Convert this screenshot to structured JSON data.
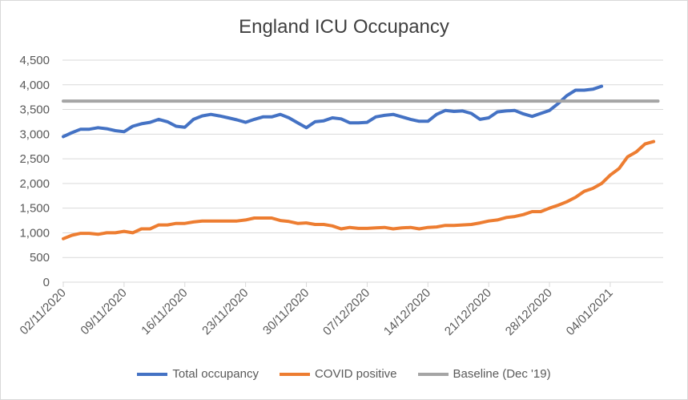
{
  "chart_data": {
    "type": "line",
    "title": "England ICU Occupancy",
    "xlabel": "",
    "ylabel": "",
    "ylim": [
      0,
      4500
    ],
    "y_ticks": [
      "0",
      "500",
      "1,000",
      "1,500",
      "2,000",
      "2,500",
      "3,000",
      "3,500",
      "4,000",
      "4,500"
    ],
    "y_tick_values": [
      0,
      500,
      1000,
      1500,
      2000,
      2500,
      3000,
      3500,
      4000,
      4500
    ],
    "x_unit": "days since 02/11/2020",
    "x_ticks": [
      "02/11/2020",
      "09/11/2020",
      "16/11/2020",
      "23/11/2020",
      "30/11/2020",
      "07/12/2020",
      "14/12/2020",
      "21/12/2020",
      "28/12/2020",
      "04/01/2021"
    ],
    "x_tick_days": [
      0,
      7,
      14,
      21,
      28,
      35,
      42,
      49,
      56,
      63
    ],
    "grid": true,
    "legend_position": "bottom",
    "series": [
      {
        "name": "Total occupancy",
        "color": "#4472C4",
        "values": [
          2950,
          3030,
          3100,
          3100,
          3130,
          3110,
          3070,
          3050,
          3160,
          3210,
          3240,
          3300,
          3250,
          3160,
          3140,
          3300,
          3370,
          3400,
          3370,
          3330,
          3290,
          3240,
          3300,
          3350,
          3350,
          3400,
          3330,
          3230,
          3130,
          3250,
          3270,
          3330,
          3310,
          3230,
          3230,
          3240,
          3350,
          3380,
          3400,
          3350,
          3300,
          3260,
          3260,
          3400,
          3480,
          3460,
          3470,
          3420,
          3300,
          3330,
          3450,
          3470,
          3480,
          3410,
          3360,
          3420,
          3480,
          3620,
          3780,
          3890,
          3890,
          3910,
          3970
        ]
      },
      {
        "name": "COVID positive",
        "color": "#ED7D31",
        "values": [
          880,
          950,
          990,
          990,
          970,
          1000,
          1000,
          1030,
          1000,
          1080,
          1080,
          1160,
          1160,
          1190,
          1190,
          1220,
          1240,
          1240,
          1240,
          1240,
          1240,
          1260,
          1300,
          1300,
          1300,
          1250,
          1230,
          1190,
          1200,
          1170,
          1170,
          1140,
          1080,
          1110,
          1090,
          1090,
          1100,
          1110,
          1080,
          1100,
          1110,
          1080,
          1110,
          1120,
          1150,
          1150,
          1160,
          1170,
          1200,
          1240,
          1260,
          1310,
          1330,
          1370,
          1430,
          1430,
          1500,
          1560,
          1630,
          1720,
          1840,
          1900,
          2000,
          2170,
          2300,
          2540,
          2640,
          2800,
          2850
        ]
      },
      {
        "name": "Baseline (Dec '19)",
        "color": "#A5A5A5",
        "constant": 3670
      }
    ]
  }
}
